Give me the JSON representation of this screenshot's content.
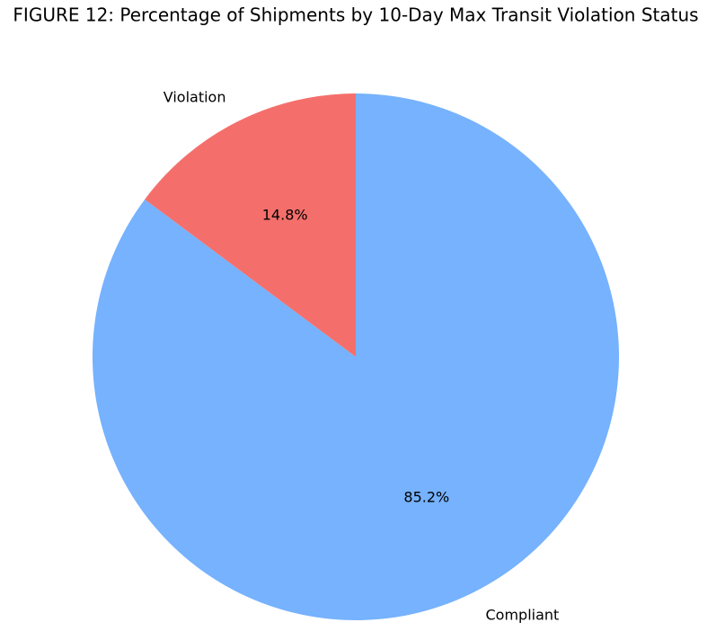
{
  "chart_data": {
    "type": "pie",
    "title": "FIGURE 12: Percentage of Shipments by 10-Day Max Transit Violation Status",
    "categories": [
      "Compliant",
      "Violation"
    ],
    "values": [
      85.2,
      14.8
    ],
    "value_labels": [
      "85.2%",
      "14.8%"
    ],
    "colors": [
      "#76b2fd",
      "#f46f6b"
    ]
  }
}
